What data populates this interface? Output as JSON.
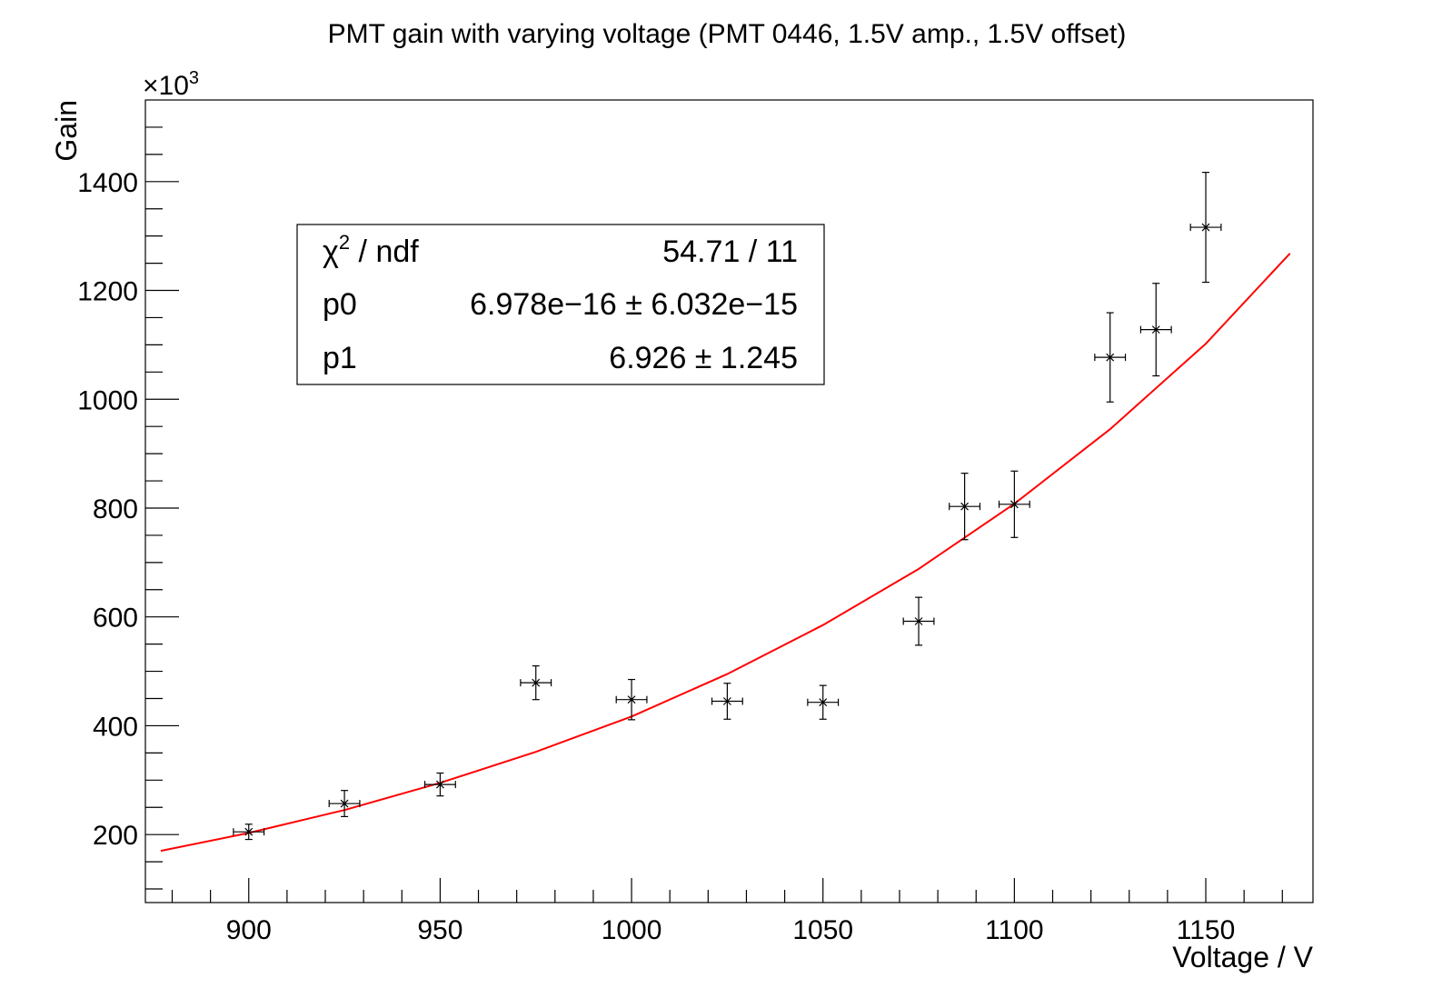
{
  "chart_data": {
    "type": "scatter",
    "title": "PMT gain with varying voltage (PMT 0446, 1.5V amp., 1.5V offset)",
    "xlabel": "Voltage / V",
    "ylabel": "Gain",
    "y_multiplier_label": "×10",
    "y_multiplier_exp": "3",
    "xlim": [
      873,
      1178
    ],
    "ylim": [
      75,
      1550
    ],
    "x_ticks": [
      900,
      950,
      1000,
      1050,
      1100,
      1150
    ],
    "y_ticks": [
      200,
      400,
      600,
      800,
      1000,
      1200,
      1400
    ],
    "grid": false,
    "series": [
      {
        "points": [
          {
            "x": 900,
            "y": 205,
            "ey": 14,
            "ex": 4
          },
          {
            "x": 925,
            "y": 257,
            "ey": 24,
            "ex": 4
          },
          {
            "x": 950,
            "y": 292,
            "ey": 21,
            "ex": 4
          },
          {
            "x": 975,
            "y": 479,
            "ey": 31,
            "ex": 4
          },
          {
            "x": 1000,
            "y": 448,
            "ey": 37,
            "ex": 4
          },
          {
            "x": 1025,
            "y": 445,
            "ey": 33,
            "ex": 4
          },
          {
            "x": 1050,
            "y": 443,
            "ey": 31,
            "ex": 4
          },
          {
            "x": 1075,
            "y": 592,
            "ey": 44,
            "ex": 4
          },
          {
            "x": 1087,
            "y": 803,
            "ey": 61,
            "ex": 4
          },
          {
            "x": 1100,
            "y": 807,
            "ey": 61,
            "ex": 4
          },
          {
            "x": 1125,
            "y": 1077,
            "ey": 82,
            "ex": 4
          },
          {
            "x": 1137,
            "y": 1128,
            "ey": 85,
            "ex": 4
          },
          {
            "x": 1150,
            "y": 1316,
            "ey": 101,
            "ex": 4
          }
        ]
      }
    ],
    "fit": {
      "color": "#ff0000",
      "x": [
        877,
        900,
        925,
        950,
        975,
        1000,
        1025,
        1050,
        1075,
        1100,
        1125,
        1150,
        1172
      ],
      "y": [
        170,
        203,
        245,
        295,
        352,
        417,
        495,
        585,
        688,
        808,
        945,
        1102,
        1268
      ]
    },
    "stats_box": {
      "rows": [
        {
          "name": "χ",
          "name_sup": "2",
          "name_suffix": " / ndf",
          "value": "54.71 / 11"
        },
        {
          "name": "p0",
          "name_sup": "",
          "name_suffix": "",
          "value": "6.978e−16 ± 6.032e−15"
        },
        {
          "name": "p1",
          "name_sup": "",
          "name_suffix": "",
          "value": "6.926 ± 1.245"
        }
      ]
    }
  }
}
